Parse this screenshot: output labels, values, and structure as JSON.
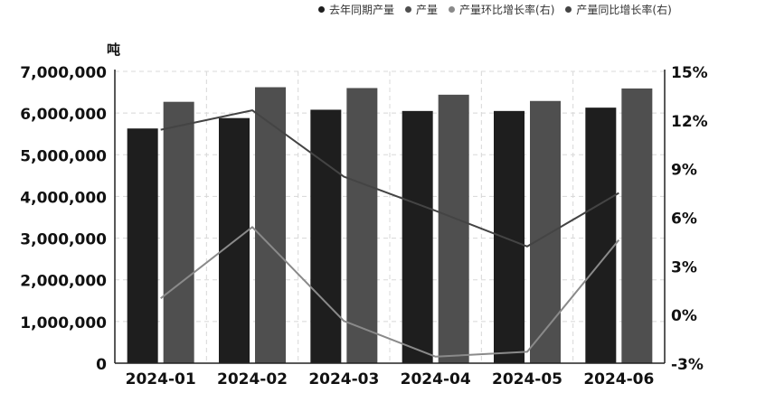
{
  "chart_data": {
    "type": "bar",
    "ylabel": "吨",
    "categories": [
      "2024-01",
      "2024-02",
      "2024-03",
      "2024-04",
      "2024-05",
      "2024-06"
    ],
    "series": [
      {
        "name": "去年同期产量",
        "type": "bar",
        "axis": "left",
        "color": "#1e1e1e",
        "values": [
          5630000,
          5880000,
          6080000,
          6050000,
          6050000,
          6130000
        ]
      },
      {
        "name": "产量",
        "type": "bar",
        "axis": "left",
        "color": "#4f4f4f",
        "values": [
          6270000,
          6620000,
          6600000,
          6440000,
          6290000,
          6590000
        ]
      },
      {
        "name": "产量环比增长率(右)",
        "type": "line",
        "axis": "right",
        "color": "#8a8a8a",
        "values": [
          1.0,
          5.4,
          -0.4,
          -2.6,
          -2.3,
          4.6
        ]
      },
      {
        "name": "产量同比增长率(右)",
        "type": "line",
        "axis": "right",
        "color": "#444444",
        "values": [
          11.4,
          12.6,
          8.5,
          6.4,
          4.2,
          7.5
        ]
      }
    ],
    "y_left": {
      "min": 0,
      "max": 7000000,
      "step": 1000000,
      "ticks": [
        "0",
        "1,000,000",
        "2,000,000",
        "3,000,000",
        "4,000,000",
        "5,000,000",
        "6,000,000",
        "7,000,000"
      ]
    },
    "y_right": {
      "min": -3,
      "max": 15,
      "step": 3,
      "ticks": [
        "-3%",
        "0%",
        "3%",
        "6%",
        "9%",
        "12%",
        "15%"
      ]
    },
    "grid": true,
    "legend_position": "top-right"
  }
}
